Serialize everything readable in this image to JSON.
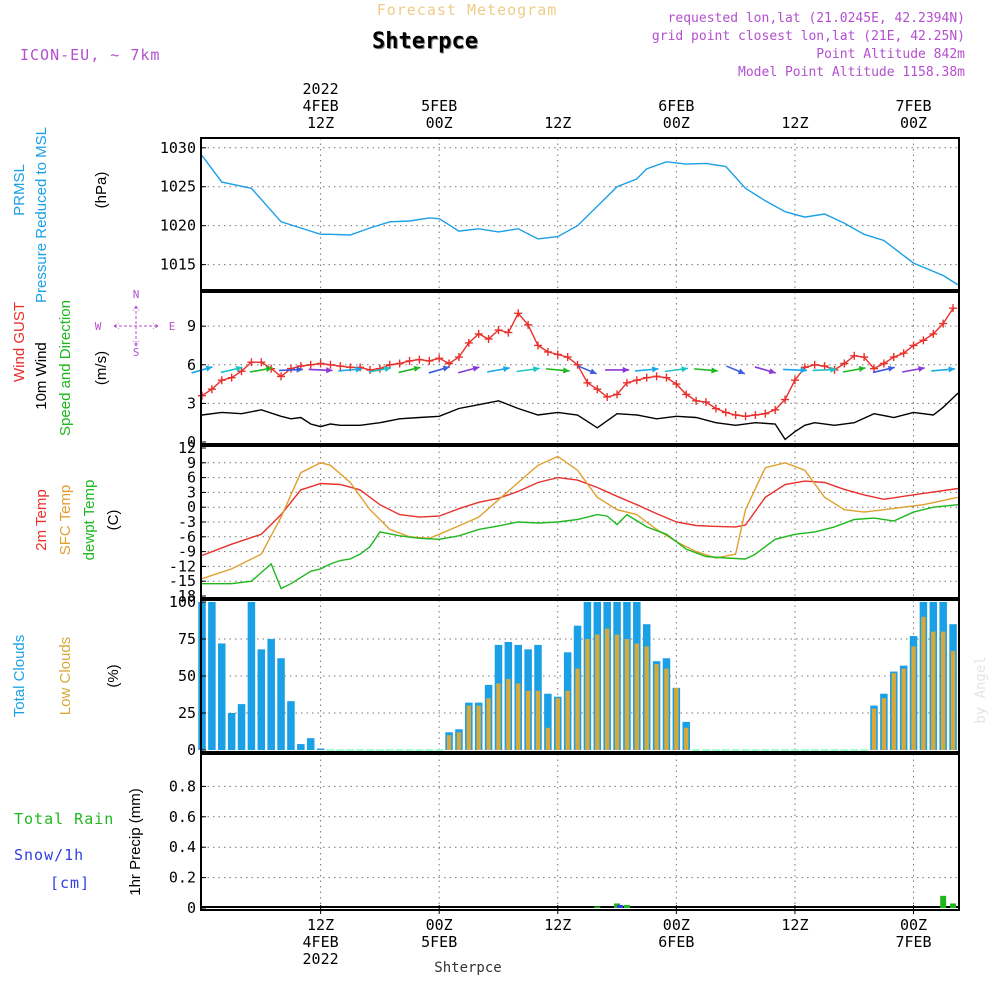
{
  "header": {
    "top_title": "Forecast Meteogram",
    "station": "Shterpce",
    "model": "ICON-EU, ~ 7km",
    "requested": "requested lon,lat (21.0245E, 42.2394N)",
    "closest": "grid point closest lon,lat (21E, 42.25N)",
    "point_alt": "Point Altitude 842m",
    "model_alt": "Model Point Altitude 1158.38m",
    "watermark": "by Angel",
    "bottom_station": "Shterpce"
  },
  "time_axis": {
    "top_labels": [
      {
        "h": 12,
        "lines": [
          "2022",
          "4FEB",
          "12Z"
        ]
      },
      {
        "h": 24,
        "lines": [
          "5FEB",
          "00Z"
        ]
      },
      {
        "h": 36,
        "lines": [
          "12Z"
        ]
      },
      {
        "h": 48,
        "lines": [
          "6FEB",
          "00Z"
        ]
      },
      {
        "h": 60,
        "lines": [
          "12Z"
        ]
      },
      {
        "h": 72,
        "lines": [
          "7FEB",
          "00Z"
        ]
      }
    ],
    "bottom_labels": [
      {
        "h": 12,
        "lines": [
          "12Z",
          "4FEB",
          "2022"
        ]
      },
      {
        "h": 24,
        "lines": [
          "00Z",
          "5FEB"
        ]
      },
      {
        "h": 36,
        "lines": [
          "12Z"
        ]
      },
      {
        "h": 48,
        "lines": [
          "00Z",
          "6FEB"
        ]
      },
      {
        "h": 60,
        "lines": [
          "12Z"
        ]
      },
      {
        "h": 72,
        "lines": [
          "00Z",
          "7FEB"
        ]
      }
    ]
  },
  "panel_labels": {
    "pressure": [
      {
        "text": "PRMSL",
        "color": "#1aa0e6"
      },
      {
        "text": "Pressure Reduced to MSL",
        "color": "#1aa0e6"
      },
      {
        "text": "(hPa)",
        "color": "#000000"
      }
    ],
    "wind": [
      {
        "text": "Wind GUST",
        "color": "#e8302c"
      },
      {
        "text": "10m Wind",
        "color": "#000000"
      },
      {
        "text": "Speed and Direction",
        "color": "#1eb81e"
      },
      {
        "text": "(m/s)",
        "color": "#000000"
      }
    ],
    "compass": {
      "n": "N",
      "s": "S",
      "w": "W",
      "e": "E",
      "color": "#b44fd0"
    },
    "temp": [
      {
        "text": "2m Temp",
        "color": "#e8302c"
      },
      {
        "text": "SFC Temp",
        "color": "#e0a030"
      },
      {
        "text": "dewpt Temp",
        "color": "#1eb81e"
      },
      {
        "text": "(C)",
        "color": "#000000"
      }
    ],
    "clouds": [
      {
        "text": "Total Clouds",
        "color": "#1aa0e6"
      },
      {
        "text": "Low Clouds",
        "color": "#d8a838"
      },
      {
        "text": "(%)",
        "color": "#000000"
      }
    ],
    "precip": {
      "axis_label": "1hr Precip (mm)",
      "total_rain": "Total Rain",
      "snow": "Snow/1h",
      "cm": "[cm]"
    }
  },
  "chart_data": [
    {
      "type": "line",
      "name": "pressure",
      "ylim": [
        1012,
        1031
      ],
      "yticks": [
        1015,
        1020,
        1025,
        1030
      ],
      "series": [
        {
          "name": "PRMSL",
          "color": "#1aa0e6",
          "x": [
            0,
            2,
            5,
            8,
            10,
            12,
            13,
            15,
            17,
            19,
            21,
            23,
            24,
            26,
            28,
            30,
            32,
            34,
            36,
            38,
            40,
            42,
            44,
            45,
            47,
            49,
            51,
            53,
            55,
            57,
            59,
            61,
            63,
            65,
            67,
            69,
            72,
            75,
            76.5
          ],
          "y": [
            1029,
            1025.6,
            1024.8,
            1020.5,
            1019.7,
            1018.9,
            1018.9,
            1018.8,
            1019.7,
            1020.5,
            1020.6,
            1021.0,
            1020.9,
            1019.3,
            1019.6,
            1019.2,
            1019.6,
            1018.3,
            1018.6,
            1020.0,
            1022.5,
            1025.0,
            1026.0,
            1027.3,
            1028.2,
            1027.9,
            1028.0,
            1027.6,
            1024.8,
            1023.2,
            1021.8,
            1021.1,
            1021.5,
            1020.3,
            1018.9,
            1018.1,
            1015.2,
            1013.6,
            1012.4
          ]
        }
      ]
    },
    {
      "type": "line",
      "name": "wind",
      "ylim": [
        0,
        11.5
      ],
      "yticks": [
        0,
        3,
        6,
        9
      ],
      "series": [
        {
          "name": "Wind GUST",
          "color": "#e8302c",
          "marker": "+",
          "x": [
            0,
            1,
            2,
            3,
            4,
            5,
            6,
            7,
            8,
            9,
            10,
            11,
            12,
            13,
            14,
            15,
            16,
            17,
            18,
            19,
            20,
            21,
            22,
            23,
            24,
            25,
            26,
            27,
            28,
            29,
            30,
            31,
            32,
            33,
            34,
            35,
            36,
            37,
            38,
            39,
            40,
            41,
            42,
            43,
            44,
            45,
            46,
            47,
            48,
            49,
            50,
            51,
            52,
            53,
            54,
            55,
            56,
            57,
            58,
            59,
            60,
            61,
            62,
            63,
            64,
            65,
            66,
            67,
            68,
            69,
            70,
            71,
            72,
            73,
            74,
            75,
            76
          ],
          "y": [
            3.6,
            4.1,
            4.8,
            5.0,
            5.5,
            6.2,
            6.2,
            5.7,
            5.1,
            5.7,
            5.9,
            6.0,
            6.1,
            6.0,
            5.9,
            5.8,
            5.8,
            5.6,
            5.7,
            6.0,
            6.1,
            6.3,
            6.4,
            6.3,
            6.5,
            6.1,
            6.6,
            7.7,
            8.4,
            8.0,
            8.7,
            8.5,
            10.0,
            9.1,
            7.5,
            7.0,
            6.8,
            6.6,
            6.0,
            4.6,
            4.1,
            3.5,
            3.7,
            4.6,
            4.8,
            5.0,
            5.1,
            5.0,
            4.5,
            3.7,
            3.2,
            3.1,
            2.6,
            2.3,
            2.1,
            2.0,
            2.1,
            2.2,
            2.5,
            3.3,
            4.8,
            5.8,
            6.0,
            5.9,
            5.6,
            6.1,
            6.7,
            6.6,
            5.7,
            6.1,
            6.6,
            6.9,
            7.5,
            7.9,
            8.4,
            9.2,
            10.4
          ]
        },
        {
          "name": "10m Wind",
          "color": "#000000",
          "x": [
            0,
            2,
            4,
            6,
            8,
            9,
            10,
            11,
            12,
            13,
            14,
            16,
            18,
            20,
            22,
            24,
            26,
            28,
            30,
            32,
            34,
            36,
            38,
            40,
            42,
            44,
            46,
            48,
            50,
            52,
            54,
            56,
            58,
            59,
            60,
            61,
            62,
            64,
            66,
            68,
            70,
            72,
            74,
            75,
            76.5
          ],
          "y": [
            2.1,
            2.3,
            2.2,
            2.5,
            2.0,
            1.8,
            1.9,
            1.4,
            1.2,
            1.4,
            1.3,
            1.3,
            1.5,
            1.8,
            1.9,
            2.0,
            2.6,
            2.9,
            3.2,
            2.6,
            2.1,
            2.3,
            2.1,
            1.1,
            2.2,
            2.1,
            1.8,
            2.0,
            1.9,
            1.5,
            1.3,
            1.5,
            1.4,
            0.2,
            0.8,
            1.3,
            1.5,
            1.3,
            1.5,
            2.2,
            1.9,
            2.3,
            2.1,
            2.7,
            3.8
          ]
        },
        {
          "name": "Speed and Direction",
          "color": "#1eb81e",
          "type": "arrows",
          "x": [
            0,
            3,
            6,
            9,
            12,
            15,
            18,
            21,
            24,
            27,
            30,
            33,
            36,
            39,
            42,
            45,
            48,
            51,
            54,
            57,
            60,
            63,
            66,
            69,
            72,
            75
          ],
          "dir_deg": [
            60,
            65,
            70,
            85,
            95,
            80,
            70,
            65,
            60,
            62,
            70,
            75,
            100,
            130,
            90,
            80,
            75,
            100,
            130,
            120,
            95,
            85,
            70,
            65,
            70,
            80
          ]
        }
      ]
    },
    {
      "type": "line",
      "name": "temperature",
      "ylim": [
        -18,
        12
      ],
      "yticks": [
        -18,
        -15,
        -12,
        -9,
        -6,
        -3,
        0,
        3,
        6,
        9,
        12
      ],
      "series": [
        {
          "name": "2m Temp",
          "color": "#e8302c",
          "x": [
            0,
            3,
            6,
            8,
            10,
            12,
            14,
            16,
            18,
            20,
            22,
            24,
            26,
            28,
            30,
            32,
            34,
            36,
            38,
            40,
            42,
            44,
            46,
            48,
            50,
            52,
            54,
            55,
            57,
            59,
            61,
            63,
            65,
            67,
            69,
            71,
            73,
            76.5
          ],
          "y": [
            -9.8,
            -7.5,
            -5.5,
            -1.5,
            3.5,
            4.8,
            4.6,
            3.5,
            0.5,
            -1.5,
            -2.0,
            -1.8,
            -0.3,
            1.0,
            1.8,
            3.2,
            5.0,
            6.0,
            5.5,
            4.0,
            2.2,
            0.5,
            -1.3,
            -3.0,
            -3.7,
            -3.9,
            -4.0,
            -3.6,
            2.0,
            4.6,
            5.3,
            5.0,
            3.6,
            2.5,
            1.6,
            2.2,
            2.8,
            3.8
          ]
        },
        {
          "name": "SFC Temp",
          "color": "#e0a030",
          "x": [
            0,
            3,
            6,
            8,
            10,
            12,
            13,
            15,
            17,
            19,
            21,
            23,
            24,
            26,
            28,
            30,
            32,
            34,
            36,
            38,
            40,
            42,
            44,
            46,
            48,
            50,
            52,
            54,
            55,
            57,
            59,
            61,
            63,
            65,
            67,
            69,
            71,
            73,
            76.5
          ],
          "y": [
            -14.5,
            -12.5,
            -9.5,
            -2.0,
            7.0,
            9.0,
            8.5,
            5.0,
            -0.5,
            -4.5,
            -6.0,
            -6.3,
            -5.5,
            -3.8,
            -2.0,
            1.5,
            5.0,
            8.5,
            10.3,
            7.5,
            2.0,
            -0.5,
            -1.5,
            -4.5,
            -7.0,
            -9.0,
            -10.3,
            -9.5,
            -0.5,
            8.0,
            9.0,
            7.5,
            2.0,
            -0.5,
            -1.0,
            -0.5,
            0.0,
            0.5,
            2.0
          ]
        },
        {
          "name": "dewpt Temp",
          "color": "#1eb81e",
          "x": [
            0,
            3,
            5,
            7,
            8,
            9,
            11,
            12,
            13,
            14,
            15,
            16,
            17,
            18,
            20,
            22,
            24,
            26,
            28,
            30,
            32,
            34,
            36,
            38,
            40,
            41,
            42,
            43,
            45,
            47,
            49,
            51,
            53,
            55,
            56,
            58,
            60,
            62,
            64,
            66,
            68,
            70,
            72,
            74,
            76.5
          ],
          "y": [
            -15.5,
            -15.5,
            -15,
            -11.5,
            -16.5,
            -15.5,
            -13,
            -12.5,
            -11.5,
            -10.8,
            -10.5,
            -9.5,
            -8,
            -5,
            -5.8,
            -6.3,
            -6.5,
            -5.8,
            -4.5,
            -3.8,
            -3.0,
            -3.2,
            -3.0,
            -2.5,
            -1.5,
            -1.8,
            -3.5,
            -1.5,
            -4.0,
            -5.5,
            -8.5,
            -10.0,
            -10.3,
            -10.5,
            -9.5,
            -6.5,
            -5.5,
            -5.0,
            -4.0,
            -2.5,
            -2.2,
            -2.8,
            -1.0,
            0.0,
            0.5
          ]
        }
      ]
    },
    {
      "type": "bar",
      "name": "clouds",
      "ylim": [
        0,
        100
      ],
      "yticks": [
        0,
        25,
        50,
        75,
        100
      ],
      "x_start": 0,
      "x_step": 1,
      "series": [
        {
          "name": "Total Clouds",
          "color": "#1aa0e6",
          "values": [
            100,
            100,
            72,
            25,
            31,
            100,
            68,
            75,
            62,
            33,
            4,
            8,
            1,
            0,
            0,
            0,
            0,
            0,
            0,
            0,
            0,
            0,
            0,
            0,
            0,
            12,
            14,
            32,
            32,
            44,
            71,
            73,
            71,
            68,
            71,
            38,
            36,
            66,
            84,
            100,
            100,
            100,
            100,
            100,
            100,
            85,
            60,
            62,
            42,
            19,
            0,
            0,
            0,
            0,
            0,
            0,
            0,
            0,
            0,
            0,
            0,
            0,
            0,
            0,
            0,
            0,
            0,
            0,
            30,
            38,
            53,
            57,
            77,
            100,
            100,
            100,
            85
          ]
        },
        {
          "name": "Low Clouds",
          "color": "#d8a838",
          "values": [
            0,
            0,
            0,
            0,
            0,
            0,
            0,
            0,
            0,
            0,
            0,
            0,
            0,
            0,
            0,
            0,
            0,
            0,
            0,
            0,
            0,
            0,
            0,
            0,
            0,
            10,
            12,
            30,
            30,
            35,
            45,
            48,
            45,
            40,
            40,
            15,
            35,
            40,
            55,
            75,
            78,
            82,
            78,
            75,
            72,
            70,
            58,
            55,
            42,
            15,
            0,
            0,
            0,
            0,
            0,
            0,
            0,
            0,
            0,
            0,
            0,
            0,
            0,
            0,
            0,
            0,
            0,
            0,
            28,
            35,
            52,
            55,
            70,
            90,
            80,
            80,
            67
          ]
        }
      ]
    },
    {
      "type": "bar",
      "name": "precipitation",
      "ylim": [
        0,
        1
      ],
      "yticks": [
        0,
        0.2,
        0.4,
        0.6,
        0.8
      ],
      "series": [
        {
          "name": "Total Rain",
          "color": "#1eb81e",
          "x": [
            40,
            42,
            43,
            75,
            76
          ],
          "values": [
            0.01,
            0.03,
            0.02,
            0.08,
            0.03
          ]
        },
        {
          "name": "Snow/1h",
          "color": "#3040e0",
          "x": [
            42
          ],
          "values": [
            0.02
          ]
        }
      ]
    }
  ]
}
